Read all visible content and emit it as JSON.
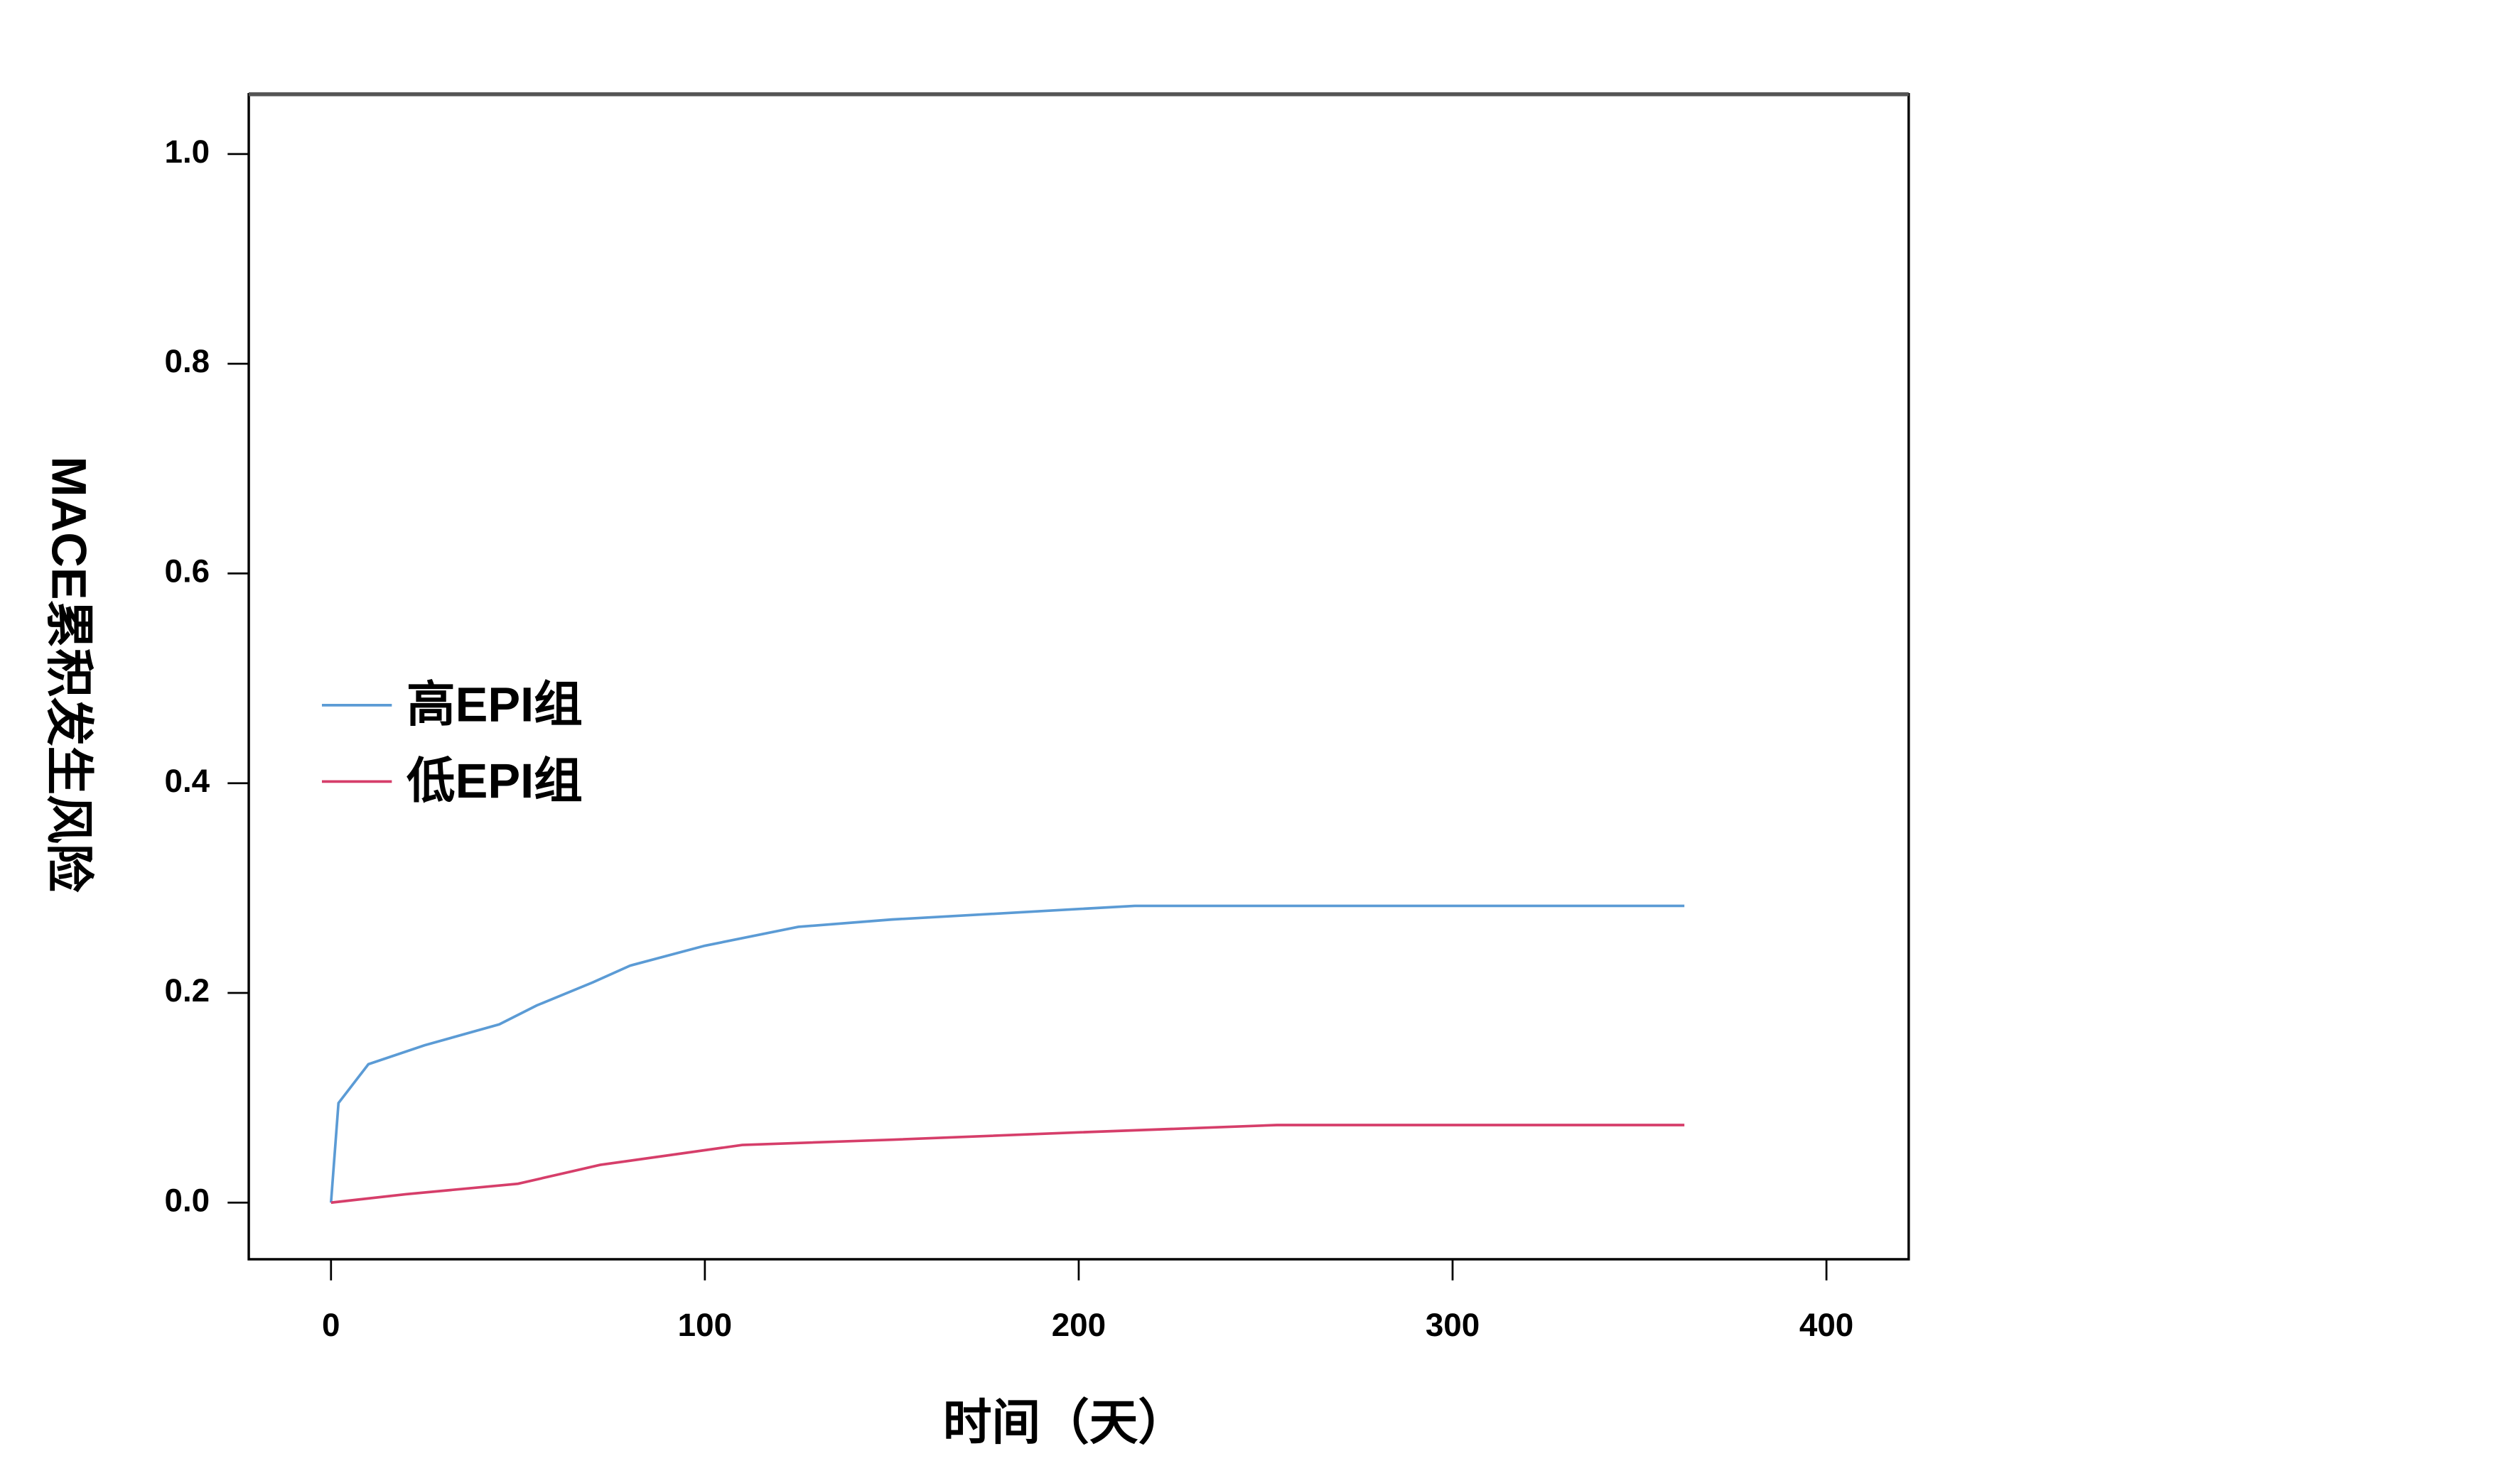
{
  "chart_data": {
    "type": "line",
    "xlabel": "时间（天）",
    "ylabel": "MACE累积发生风险",
    "xlim": [
      -22,
      422
    ],
    "ylim": [
      -0.054,
      1.057
    ],
    "xticks": [
      0,
      100,
      200,
      300,
      400
    ],
    "yticks": [
      {
        "value": 0,
        "label": "0.0"
      },
      {
        "value": 0.2,
        "label": "0.2"
      },
      {
        "value": 0.4,
        "label": "0.4"
      },
      {
        "value": 0.6,
        "label": "0.6"
      },
      {
        "value": 0.8,
        "label": "0.8"
      },
      {
        "value": 1,
        "label": "1.0"
      }
    ],
    "legend": "center left",
    "series": [
      {
        "name": "高EPI组",
        "color": "#5b9bd5",
        "x": [
          0,
          2,
          10,
          25,
          45,
          55,
          70,
          80,
          100,
          125,
          150,
          200,
          215,
          362
        ],
        "values": [
          0,
          0.095,
          0.132,
          0.15,
          0.17,
          0.188,
          0.21,
          0.226,
          0.245,
          0.263,
          0.27,
          0.28,
          0.283,
          0.283
        ]
      },
      {
        "name": "低EPI组",
        "color": "#d63e6a",
        "x": [
          0,
          20,
          50,
          72,
          110,
          150,
          200,
          253,
          362
        ],
        "values": [
          0,
          0.008,
          0.018,
          0.036,
          0.055,
          0.06,
          0.067,
          0.074,
          0.074
        ]
      }
    ]
  }
}
